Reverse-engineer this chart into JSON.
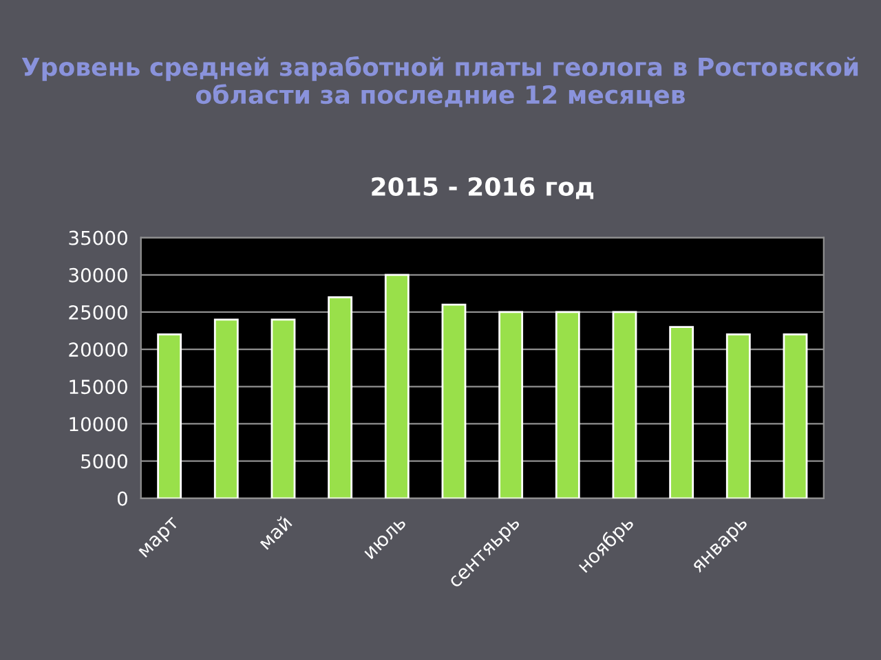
{
  "chart_data": {
    "type": "bar",
    "title": "Уровень средней заработной платы геолога в Ростовской области за последние 12 месяцев",
    "subtitle": "2015 - 2016 год",
    "categories": [
      "март",
      null,
      "май",
      null,
      "июль",
      null,
      "сентяьрь",
      null,
      "ноябрь",
      null,
      "январь",
      null
    ],
    "values": [
      22000,
      24000,
      24000,
      27000,
      30000,
      26000,
      25000,
      25000,
      25000,
      23000,
      22000,
      22000
    ],
    "color": "#99e04a",
    "ylim": [
      0,
      35000
    ],
    "yticks": [
      0,
      5000,
      10000,
      15000,
      20000,
      25000,
      30000,
      35000
    ],
    "grid": "y"
  }
}
